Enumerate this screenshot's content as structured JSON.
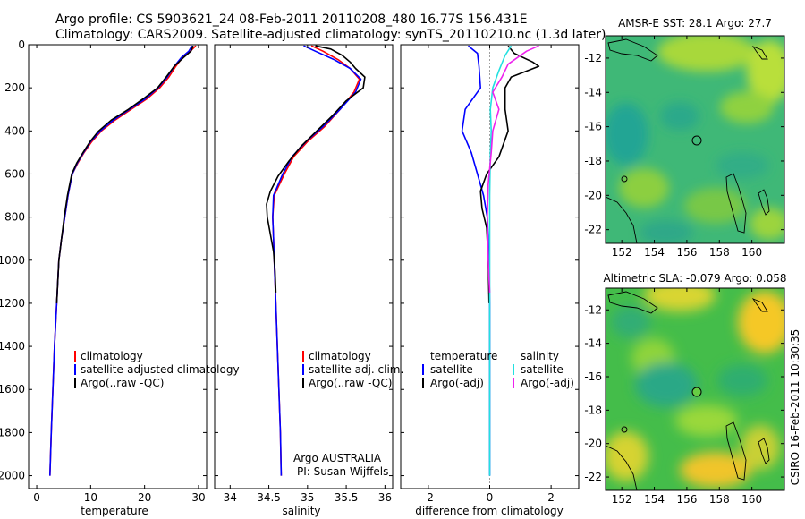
{
  "header": {
    "title_line1": "Argo profile: CS 5903621_24 08-Feb-2011 20110208_480 16.77S 156.431E",
    "title_line2": "Climatology: CARS2009. Satellite-adjusted climatology: synTS_20110210.nc (1.3d later)"
  },
  "credits": {
    "program": "Argo AUSTRALIA",
    "pi": "PI: Susan Wijffels",
    "side_stamp": "CSIRO 16-Feb-2011 10:30:35"
  },
  "colors": {
    "climatology": "#ff0000",
    "satellite": "#0000ff",
    "argo": "#000000",
    "sat_diff_sal": "#22e0e0",
    "argo_diff_sal": "#ee22ee"
  },
  "chart_data": [
    {
      "id": "temperature",
      "type": "line",
      "xlabel": "temperature",
      "xlim": [
        -1.5,
        31.5
      ],
      "xticks": [
        0,
        10,
        20,
        30
      ],
      "ylim": [
        2060,
        0
      ],
      "yticks": [
        0,
        200,
        400,
        600,
        800,
        1000,
        1200,
        1400,
        1600,
        1800,
        2000
      ],
      "legend": [
        "climatology",
        "satellite-adjusted climatology",
        "Argo(..raw -QC)"
      ],
      "series": [
        {
          "name": "climatology",
          "color_key": "climatology",
          "points": [
            [
              29.5,
              5
            ],
            [
              28.5,
              30
            ],
            [
              27,
              60
            ],
            [
              25.8,
              100
            ],
            [
              24.5,
              150
            ],
            [
              22.8,
              200
            ],
            [
              20.5,
              250
            ],
            [
              17.5,
              300
            ],
            [
              14.5,
              350
            ],
            [
              12,
              400
            ],
            [
              10.2,
              450
            ],
            [
              8.8,
              500
            ],
            [
              7.6,
              550
            ],
            [
              6.6,
              600
            ],
            [
              5.8,
              700
            ],
            [
              5.2,
              800
            ],
            [
              4.6,
              900
            ],
            [
              4.1,
              1000
            ],
            [
              3.7,
              1200
            ],
            [
              3.3,
              1400
            ],
            [
              3,
              1600
            ],
            [
              2.7,
              1800
            ],
            [
              2.45,
              2000
            ]
          ]
        },
        {
          "name": "satellite-adjusted climatology",
          "color_key": "satellite",
          "points": [
            [
              28.8,
              5
            ],
            [
              28.2,
              30
            ],
            [
              26.8,
              60
            ],
            [
              25.5,
              100
            ],
            [
              24.2,
              150
            ],
            [
              22.5,
              200
            ],
            [
              20.2,
              250
            ],
            [
              17.2,
              300
            ],
            [
              14.2,
              350
            ],
            [
              11.8,
              400
            ],
            [
              10,
              450
            ],
            [
              8.7,
              500
            ],
            [
              7.5,
              550
            ],
            [
              6.6,
              600
            ],
            [
              5.8,
              700
            ],
            [
              5.2,
              800
            ],
            [
              4.6,
              900
            ],
            [
              4.1,
              1000
            ],
            [
              3.7,
              1200
            ],
            [
              3.3,
              1400
            ],
            [
              3,
              1600
            ],
            [
              2.7,
              1800
            ],
            [
              2.45,
              2000
            ]
          ]
        },
        {
          "name": "Argo(..raw -QC)",
          "color_key": "argo",
          "points": [
            [
              29,
              5
            ],
            [
              28.6,
              30
            ],
            [
              27.2,
              60
            ],
            [
              25.5,
              100
            ],
            [
              24,
              150
            ],
            [
              22.4,
              200
            ],
            [
              19.8,
              250
            ],
            [
              17,
              300
            ],
            [
              13.8,
              350
            ],
            [
              11.5,
              400
            ],
            [
              9.9,
              450
            ],
            [
              8.6,
              500
            ],
            [
              7.4,
              550
            ],
            [
              6.5,
              600
            ],
            [
              5.7,
              700
            ],
            [
              5.1,
              800
            ],
            [
              4.6,
              900
            ],
            [
              4.1,
              1000
            ],
            [
              3.7,
              1200
            ]
          ]
        }
      ]
    },
    {
      "id": "salinity",
      "type": "line",
      "xlabel": "salinity",
      "xlim": [
        33.8,
        36.1
      ],
      "xticks": [
        34,
        34.5,
        35,
        35.5,
        36
      ],
      "ylim": [
        2060,
        0
      ],
      "legend": [
        "climatology",
        "satellite adj. clim.",
        "Argo(..raw -QC)"
      ],
      "series": [
        {
          "name": "climatology",
          "color_key": "climatology",
          "points": [
            [
              35.05,
              5
            ],
            [
              35.2,
              30
            ],
            [
              35.4,
              70
            ],
            [
              35.55,
              110
            ],
            [
              35.67,
              160
            ],
            [
              35.6,
              220
            ],
            [
              35.42,
              300
            ],
            [
              35.22,
              380
            ],
            [
              35,
              450
            ],
            [
              34.82,
              520
            ],
            [
              34.7,
              600
            ],
            [
              34.57,
              700
            ],
            [
              34.55,
              800
            ],
            [
              34.56,
              900
            ],
            [
              34.57,
              1000
            ],
            [
              34.59,
              1200
            ],
            [
              34.61,
              1400
            ],
            [
              34.63,
              1600
            ],
            [
              34.65,
              1800
            ],
            [
              34.66,
              2000
            ]
          ]
        },
        {
          "name": "satellite adj. clim.",
          "color_key": "satellite",
          "points": [
            [
              34.95,
              5
            ],
            [
              35.1,
              30
            ],
            [
              35.35,
              70
            ],
            [
              35.55,
              110
            ],
            [
              35.69,
              160
            ],
            [
              35.62,
              220
            ],
            [
              35.42,
              300
            ],
            [
              35.2,
              380
            ],
            [
              34.98,
              450
            ],
            [
              34.8,
              520
            ],
            [
              34.68,
              600
            ],
            [
              34.56,
              700
            ],
            [
              34.55,
              800
            ],
            [
              34.56,
              900
            ],
            [
              34.57,
              1000
            ],
            [
              34.59,
              1200
            ],
            [
              34.61,
              1400
            ],
            [
              34.63,
              1600
            ],
            [
              34.65,
              1800
            ],
            [
              34.66,
              2000
            ]
          ]
        },
        {
          "name": "Argo(..raw -QC)",
          "color_key": "argo",
          "points": [
            [
              35.1,
              5
            ],
            [
              35.3,
              20
            ],
            [
              35.45,
              50
            ],
            [
              35.55,
              80
            ],
            [
              35.62,
              110
            ],
            [
              35.74,
              150
            ],
            [
              35.72,
              200
            ],
            [
              35.5,
              260
            ],
            [
              35.32,
              330
            ],
            [
              35.12,
              400
            ],
            [
              34.92,
              470
            ],
            [
              34.76,
              540
            ],
            [
              34.62,
              610
            ],
            [
              34.52,
              680
            ],
            [
              34.47,
              740
            ],
            [
              34.48,
              800
            ],
            [
              34.52,
              880
            ],
            [
              34.56,
              960
            ],
            [
              34.58,
              1050
            ],
            [
              34.59,
              1150
            ]
          ]
        }
      ]
    },
    {
      "id": "difference",
      "type": "line",
      "xlabel": "difference from climatology",
      "xlim": [
        -2.9,
        2.9
      ],
      "xticks": [
        -2,
        0,
        2
      ],
      "ylim": [
        2060,
        0
      ],
      "legend_left_title": "temperature",
      "legend_right_title": "salinity",
      "legend": [
        "satellite",
        "Argo(-adj)",
        "satellite",
        "Argo(-adj)"
      ],
      "series": [
        {
          "name": "temperature satellite",
          "color_key": "satellite",
          "points": [
            [
              -0.7,
              5
            ],
            [
              -0.4,
              40
            ],
            [
              -0.35,
              100
            ],
            [
              -0.3,
              200
            ],
            [
              -0.8,
              300
            ],
            [
              -0.9,
              400
            ],
            [
              -0.6,
              500
            ],
            [
              -0.4,
              600
            ],
            [
              -0.2,
              700
            ],
            [
              -0.08,
              800
            ],
            [
              -0.02,
              1000
            ],
            [
              0,
              1200
            ],
            [
              0,
              2000
            ]
          ]
        },
        {
          "name": "temperature Argo(-adj)",
          "color_key": "argo",
          "points": [
            [
              0.6,
              5
            ],
            [
              0.8,
              40
            ],
            [
              1.4,
              80
            ],
            [
              1.6,
              100
            ],
            [
              0.7,
              150
            ],
            [
              0.5,
              200
            ],
            [
              0.5,
              300
            ],
            [
              0.6,
              400
            ],
            [
              0.3,
              520
            ],
            [
              -0.1,
              600
            ],
            [
              -0.3,
              680
            ],
            [
              -0.25,
              760
            ],
            [
              -0.1,
              850
            ],
            [
              -0.05,
              1000
            ],
            [
              -0.02,
              1200
            ]
          ]
        },
        {
          "name": "salinity satellite",
          "color_key": "sat_diff_sal",
          "points": [
            [
              0.7,
              5
            ],
            [
              0.5,
              50
            ],
            [
              0.3,
              120
            ],
            [
              0.1,
              200
            ],
            [
              0.02,
              300
            ],
            [
              0.05,
              400
            ],
            [
              0.02,
              500
            ],
            [
              0,
              700
            ],
            [
              0,
              1000
            ],
            [
              0,
              2000
            ]
          ]
        },
        {
          "name": "salinity Argo(-adj)",
          "color_key": "argo_diff_sal",
          "points": [
            [
              1.6,
              5
            ],
            [
              1.2,
              30
            ],
            [
              0.6,
              90
            ],
            [
              0.4,
              150
            ],
            [
              0.1,
              220
            ],
            [
              0.3,
              300
            ],
            [
              0.1,
              400
            ],
            [
              0.05,
              500
            ],
            [
              -0.05,
              650
            ],
            [
              -0.08,
              800
            ],
            [
              -0.05,
              1000
            ],
            [
              0,
              1150
            ]
          ]
        }
      ]
    },
    {
      "id": "sst_map",
      "type": "heatmap",
      "title": "AMSR-E SST: 28.1 Argo: 27.7",
      "xticks": [
        152,
        154,
        156,
        158,
        160
      ],
      "yticks": [
        -12,
        -14,
        -16,
        -18,
        -20,
        -22
      ],
      "xlim": [
        151,
        162
      ],
      "ylim": [
        -22.8,
        -10.7
      ],
      "argo_position": [
        156.431,
        -16.77
      ]
    },
    {
      "id": "sla_map",
      "type": "heatmap",
      "title": "Altimetric SLA: -0.079 Argo: 0.058",
      "xticks": [
        152,
        154,
        156,
        158,
        160
      ],
      "yticks": [
        -12,
        -14,
        -16,
        -18,
        -20,
        -22
      ],
      "xlim": [
        151,
        162
      ],
      "ylim": [
        -22.8,
        -10.7
      ],
      "argo_position": [
        156.431,
        -16.77
      ]
    }
  ]
}
